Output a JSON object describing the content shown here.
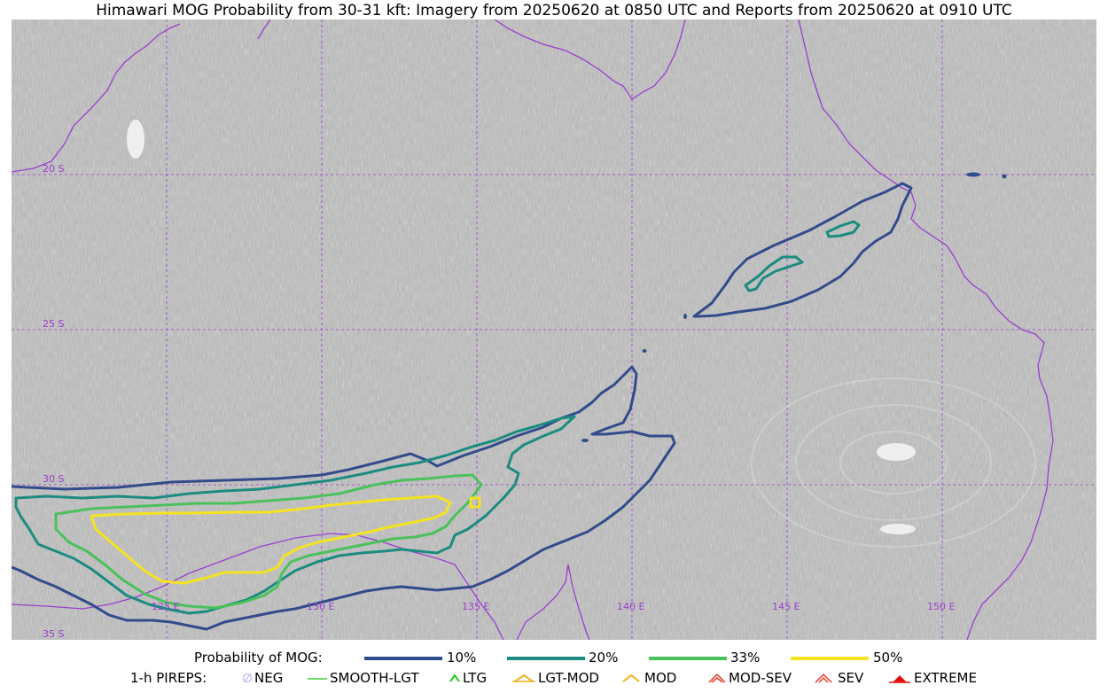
{
  "title": "Himawari MOG Probability from 30-31 kft: Imagery from 20250620 at 0850 UTC and Reports from 20250620 at 0910 UTC",
  "map": {
    "lat_labels": [
      "20 S",
      "25 S",
      "30 S",
      "35 S"
    ],
    "lon_labels": [
      "125 E",
      "130 E",
      "135 E",
      "140 E",
      "145 E",
      "150 E"
    ],
    "graticule_color": "#9a3fcf",
    "coast_color": "#9a3fcf",
    "background": "satellite-imagery-grayscale"
  },
  "legend_probability": {
    "label": "Probability of MOG:",
    "levels": [
      {
        "label": "10%",
        "color": "#324b8a"
      },
      {
        "label": "20%",
        "color": "#1b8c7f"
      },
      {
        "label": "33%",
        "color": "#4ac15a"
      },
      {
        "label": "50%",
        "color": "#f5e322"
      }
    ]
  },
  "legend_pireps": {
    "label": "1-h PIREPS:",
    "items": [
      {
        "label": "NEG",
        "icon": "neg-icon",
        "color": "#c5c5f5"
      },
      {
        "label": "SMOOTH-LGT",
        "icon": "smooth-lgt-line",
        "color": "#3cd03c"
      },
      {
        "label": "LTG",
        "icon": "ltg-chevron-icon",
        "color": "#22cc22"
      },
      {
        "label": "LGT-MOD",
        "icon": "lgt-mod-icon",
        "color": "#f0b020"
      },
      {
        "label": "MOD",
        "icon": "mod-chevron-icon",
        "color": "#f0b020"
      },
      {
        "label": "MOD-SEV",
        "icon": "mod-sev-icon",
        "color": "#e83a2a"
      },
      {
        "label": "SEV",
        "icon": "sev-icon",
        "color": "#e83a2a"
      },
      {
        "label": "EXTREME",
        "icon": "extreme-icon",
        "color": "#e81010"
      }
    ]
  }
}
